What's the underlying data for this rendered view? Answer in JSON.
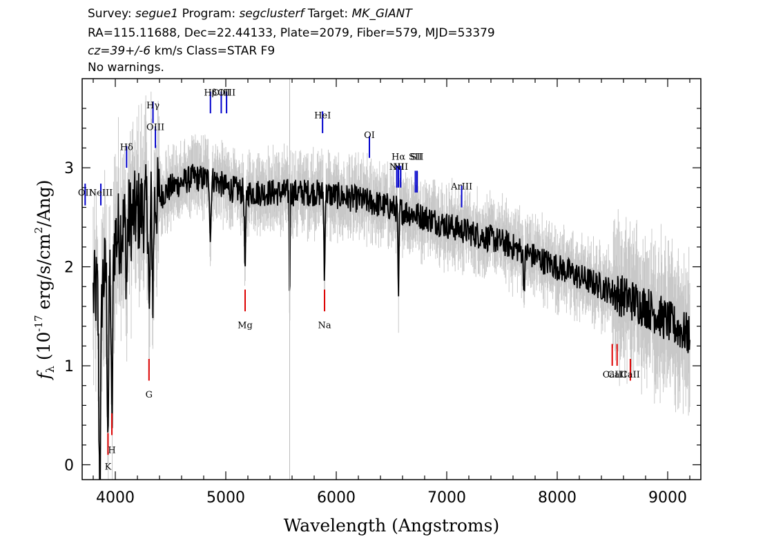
{
  "header": {
    "line1_prefix": "Survey: ",
    "survey": "segue1",
    "line1_mid1": " Program: ",
    "program": "segclusterf",
    "line1_mid2": " Target: ",
    "target": "MK_GIANT",
    "line2": "RA=115.11688, Dec=22.44133, Plate=2079, Fiber=579, MJD=53379",
    "line3_cz": "cz=39+/-6",
    "line3_rest": " km/s Class=STAR F9",
    "line4": "No warnings."
  },
  "chart_data": {
    "type": "line",
    "title": "",
    "xlabel": "Wavelength (Angstroms)",
    "ylabel_prefix": "f",
    "ylabel_sub": "λ",
    "ylabel_mid": " (10",
    "ylabel_exp": "-17",
    "ylabel_unit": " erg/s/cm",
    "ylabel_unit_exp": "2",
    "ylabel_end": "/Ang)",
    "xlim": [
      3700,
      9300
    ],
    "ylim": [
      -0.15,
      3.9
    ],
    "xticks": [
      4000,
      5000,
      6000,
      7000,
      8000,
      9000
    ],
    "yticks": [
      0,
      1,
      2,
      3
    ],
    "vertical_marker_x": 5578,
    "continuum_points": [
      [
        3800,
        1.7
      ],
      [
        3900,
        1.9
      ],
      [
        4000,
        2.3
      ],
      [
        4100,
        2.45
      ],
      [
        4200,
        2.55
      ],
      [
        4300,
        2.6
      ],
      [
        4400,
        2.7
      ],
      [
        4500,
        2.8
      ],
      [
        4700,
        2.9
      ],
      [
        4900,
        2.88
      ],
      [
        5000,
        2.8
      ],
      [
        5200,
        2.75
      ],
      [
        5500,
        2.75
      ],
      [
        5800,
        2.75
      ],
      [
        6000,
        2.72
      ],
      [
        6200,
        2.68
      ],
      [
        6500,
        2.6
      ],
      [
        6800,
        2.5
      ],
      [
        7000,
        2.42
      ],
      [
        7200,
        2.35
      ],
      [
        7500,
        2.25
      ],
      [
        7800,
        2.1
      ],
      [
        8000,
        2.0
      ],
      [
        8200,
        1.9
      ],
      [
        8500,
        1.75
      ],
      [
        8800,
        1.6
      ],
      [
        9000,
        1.45
      ],
      [
        9200,
        1.3
      ]
    ],
    "absorption_dips": [
      {
        "x": 3860,
        "depth": 2.0,
        "width": 12
      },
      {
        "x": 3934,
        "depth": 1.6,
        "width": 10
      },
      {
        "x": 3969,
        "depth": 1.8,
        "width": 10
      },
      {
        "x": 4102,
        "depth": 0.6,
        "width": 8
      },
      {
        "x": 4308,
        "depth": 1.2,
        "width": 8
      },
      {
        "x": 4340,
        "depth": 0.9,
        "width": 8
      },
      {
        "x": 4861,
        "depth": 0.6,
        "width": 8
      },
      {
        "x": 5175,
        "depth": 0.8,
        "width": 8
      },
      {
        "x": 5578,
        "depth": 1.2,
        "width": 4
      },
      {
        "x": 5893,
        "depth": 0.9,
        "width": 6
      },
      {
        "x": 6563,
        "depth": 1.0,
        "width": 6
      },
      {
        "x": 7700,
        "depth": 0.3,
        "width": 10
      }
    ],
    "emission_lines": [
      {
        "label": "OII",
        "x": 3727,
        "y": 2.62,
        "label_y": 2.72
      },
      {
        "label": "NeIII",
        "x": 3869,
        "y": 2.62,
        "label_y": 2.72
      },
      {
        "label": "Hδ",
        "x": 4102,
        "y": 3.0,
        "label_y": 3.18
      },
      {
        "label": "Hγ",
        "x": 4341,
        "y": 3.45,
        "label_y": 3.6
      },
      {
        "label": "OIII",
        "x": 4363,
        "y": 3.2,
        "label_y": 3.38
      },
      {
        "label": "Hβ",
        "x": 4861,
        "y": 3.55,
        "label_y": 3.73
      },
      {
        "label": "OIII",
        "x": 4959,
        "y": 3.55,
        "label_y": 3.73
      },
      {
        "label": "OIII",
        "x": 5007,
        "y": 3.55,
        "label_y": 3.73
      },
      {
        "label": "HeI",
        "x": 5876,
        "y": 3.35,
        "label_y": 3.5
      },
      {
        "label": "OI",
        "x": 6300,
        "y": 3.1,
        "label_y": 3.3
      },
      {
        "label": "NII",
        "x": 6548,
        "y": 2.8,
        "label_y": 2.98
      },
      {
        "label": "Hα",
        "x": 6563,
        "y": 2.8,
        "label_y": 3.08
      },
      {
        "label": "NII",
        "x": 6583,
        "y": 2.8,
        "label_y": 2.98
      },
      {
        "label": "SII",
        "x": 6716,
        "y": 2.75,
        "label_y": 3.08
      },
      {
        "label": "SII",
        "x": 6731,
        "y": 2.75,
        "label_y": 3.08
      },
      {
        "label": "ArIII",
        "x": 7135,
        "y": 2.6,
        "label_y": 2.78
      }
    ],
    "absorption_lines": [
      {
        "label": "K",
        "x": 3934,
        "y": 0.1,
        "label_y": -0.05
      },
      {
        "label": "H",
        "x": 3969,
        "y": 0.3,
        "label_y": 0.12
      },
      {
        "label": "G",
        "x": 4305,
        "y": 0.85,
        "label_y": 0.68
      },
      {
        "label": "Mg",
        "x": 5175,
        "y": 1.55,
        "label_y": 1.38
      },
      {
        "label": "Na",
        "x": 5894,
        "y": 1.55,
        "label_y": 1.38
      },
      {
        "label": "CaII",
        "x": 8498,
        "y": 1.0,
        "label_y": 0.88
      },
      {
        "label": "CaII",
        "x": 8542,
        "y": 1.0,
        "label_y": 0.88
      },
      {
        "label": "CaII",
        "x": 8662,
        "y": 0.85,
        "label_y": 0.88
      }
    ],
    "colors": {
      "flux": "#000000",
      "error": "#c8c8c8",
      "emission": "#0000cc",
      "absorption": "#dd0000",
      "sky_marker": "#bbbbbb"
    }
  }
}
